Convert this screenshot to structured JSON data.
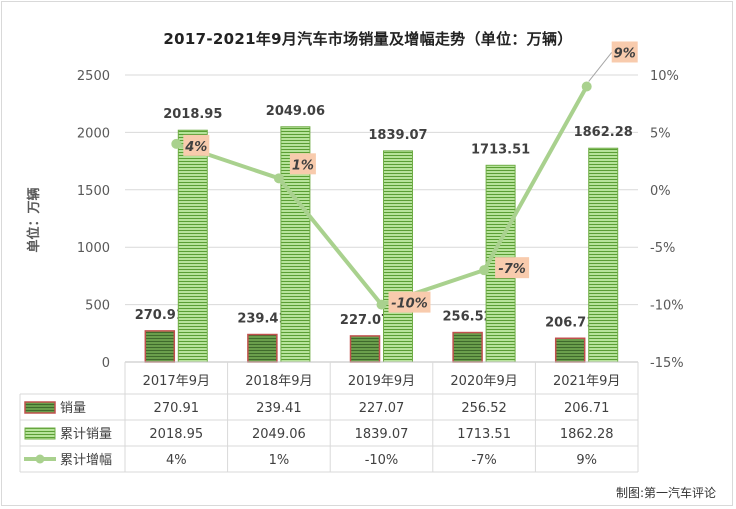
{
  "title": "2017-2021年9月汽车市场销量及增幅走势（单位：万辆）",
  "credit": "制图:第一汽车评论",
  "chart_data": {
    "type": "bar",
    "title": "2017-2021年9月汽车市场销量及增幅走势（单位：万辆）",
    "categories": [
      "2017年9月",
      "2018年9月",
      "2019年9月",
      "2020年9月",
      "2021年9月"
    ],
    "ylabel": "单位：万辆",
    "ylim": [
      0,
      2500
    ],
    "yticks": [
      0,
      500,
      1000,
      1500,
      2000,
      2500
    ],
    "y2lim": [
      -15,
      10
    ],
    "y2ticks": [
      -15,
      -10,
      -5,
      0,
      5,
      10
    ],
    "y2tick_labels": [
      "-15%",
      "-10%",
      "-5%",
      "0%",
      "5%",
      "10%"
    ],
    "series": [
      {
        "name": "销量",
        "type": "bar",
        "color": "#c0504d",
        "values": [
          270.91,
          239.41,
          227.07,
          256.52,
          206.71
        ],
        "labels": [
          "270.91",
          "239.41",
          "227.07",
          "256.52",
          "206.71"
        ]
      },
      {
        "name": "累计销量",
        "type": "bar",
        "color": "#8fd16a",
        "values": [
          2018.95,
          2049.06,
          1839.07,
          1713.51,
          1862.28
        ],
        "labels": [
          "2018.95",
          "2049.06",
          "1839.07",
          "1713.51",
          "1862.28"
        ]
      },
      {
        "name": "累计增幅",
        "type": "line",
        "axis": "right",
        "color": "#a9d18e",
        "values": [
          4,
          1,
          -10,
          -7,
          9
        ],
        "labels": [
          "4%",
          "1%",
          "-10%",
          "-7%",
          "9%"
        ]
      }
    ],
    "grid": true,
    "legend": "data table below plot"
  }
}
